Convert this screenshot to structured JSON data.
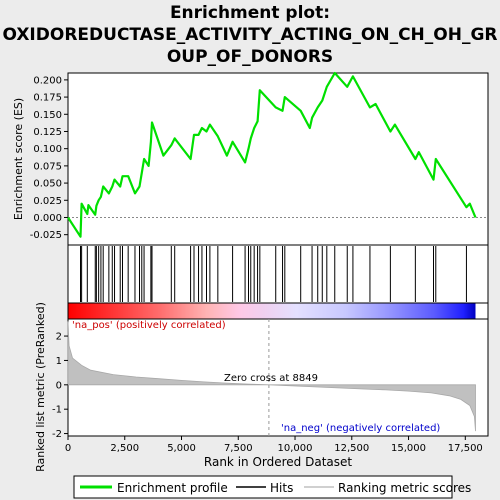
{
  "chart_data": {
    "type": "line",
    "title_lines": [
      "Enrichment plot:",
      "OXIDOREDUCTASE_ACTIVITY_ACTING_ON_CH_OH_GR",
      "OUP_OF_DONORS"
    ],
    "top_panel": {
      "ylabel": "Enrichment score (ES)",
      "ylim": [
        -0.04,
        0.21
      ],
      "yticks": [
        "0.200",
        "0.175",
        "0.150",
        "0.125",
        "0.100",
        "0.075",
        "0.050",
        "0.025",
        "0.000",
        "-0.025"
      ],
      "ytick_values": [
        0.2,
        0.175,
        0.15,
        0.125,
        0.1,
        0.075,
        0.05,
        0.025,
        0.0,
        -0.025
      ],
      "series_name": "Enrichment profile",
      "color": "#00e000",
      "points": [
        [
          0,
          0.0
        ],
        [
          550,
          -0.028
        ],
        [
          600,
          0.02
        ],
        [
          850,
          0.005
        ],
        [
          900,
          0.018
        ],
        [
          1200,
          0.004
        ],
        [
          1250,
          0.017
        ],
        [
          1350,
          0.025
        ],
        [
          1450,
          0.03
        ],
        [
          1550,
          0.045
        ],
        [
          1800,
          0.035
        ],
        [
          1950,
          0.045
        ],
        [
          2050,
          0.055
        ],
        [
          2300,
          0.045
        ],
        [
          2400,
          0.06
        ],
        [
          2650,
          0.06
        ],
        [
          2950,
          0.035
        ],
        [
          3150,
          0.045
        ],
        [
          3250,
          0.065
        ],
        [
          3350,
          0.085
        ],
        [
          3550,
          0.075
        ],
        [
          3650,
          0.11
        ],
        [
          3700,
          0.138
        ],
        [
          4200,
          0.09
        ],
        [
          4550,
          0.105
        ],
        [
          4700,
          0.115
        ],
        [
          5400,
          0.085
        ],
        [
          5550,
          0.12
        ],
        [
          5750,
          0.12
        ],
        [
          5900,
          0.13
        ],
        [
          6100,
          0.125
        ],
        [
          6250,
          0.135
        ],
        [
          6600,
          0.118
        ],
        [
          7000,
          0.09
        ],
        [
          7250,
          0.11
        ],
        [
          7800,
          0.08
        ],
        [
          7950,
          0.1
        ],
        [
          8050,
          0.115
        ],
        [
          8200,
          0.13
        ],
        [
          8350,
          0.14
        ],
        [
          8450,
          0.185
        ],
        [
          9150,
          0.16
        ],
        [
          9450,
          0.155
        ],
        [
          9550,
          0.175
        ],
        [
          10250,
          0.155
        ],
        [
          10650,
          0.13
        ],
        [
          10750,
          0.145
        ],
        [
          11000,
          0.16
        ],
        [
          11200,
          0.17
        ],
        [
          11400,
          0.19
        ],
        [
          11750,
          0.21
        ],
        [
          12300,
          0.19
        ],
        [
          12550,
          0.205
        ],
        [
          13300,
          0.16
        ],
        [
          13550,
          0.165
        ],
        [
          14200,
          0.125
        ],
        [
          14400,
          0.135
        ],
        [
          15300,
          0.085
        ],
        [
          15450,
          0.095
        ],
        [
          16100,
          0.055
        ],
        [
          16200,
          0.085
        ],
        [
          17550,
          0.015
        ],
        [
          17700,
          0.02
        ],
        [
          17950,
          0.0
        ]
      ]
    },
    "hits_rug": {
      "series_name": "Hits",
      "x": [
        550,
        600,
        850,
        1200,
        1250,
        1350,
        1450,
        1550,
        1800,
        1950,
        2050,
        2300,
        2400,
        2650,
        2950,
        3150,
        3250,
        3350,
        3650,
        3700,
        4550,
        4700,
        5400,
        5550,
        5750,
        5900,
        6100,
        6250,
        6600,
        7250,
        7800,
        7950,
        8050,
        8200,
        8350,
        8450,
        9150,
        9450,
        9550,
        10250,
        10750,
        11000,
        11200,
        11400,
        11750,
        12300,
        12550,
        13300,
        14200,
        15300,
        16100,
        16200,
        17550
      ]
    },
    "bottom_panel": {
      "ylabel": "Ranked list metric (PreRanked)",
      "ylim": [
        -2.1,
        2.7
      ],
      "yticks": [
        "2",
        "1",
        "0",
        "-1",
        "-2"
      ],
      "ytick_values": [
        2,
        1,
        0,
        -1,
        -2
      ],
      "series_name": "Ranking metric scores",
      "curve": [
        [
          0,
          2.6
        ],
        [
          50,
          1.6
        ],
        [
          200,
          1.1
        ],
        [
          600,
          0.8
        ],
        [
          1000,
          0.6
        ],
        [
          2000,
          0.42
        ],
        [
          3000,
          0.32
        ],
        [
          4000,
          0.25
        ],
        [
          5000,
          0.18
        ],
        [
          6000,
          0.12
        ],
        [
          7000,
          0.07
        ],
        [
          8000,
          0.03
        ],
        [
          8849,
          0.0
        ],
        [
          10000,
          -0.05
        ],
        [
          11000,
          -0.09
        ],
        [
          12000,
          -0.13
        ],
        [
          13000,
          -0.17
        ],
        [
          14000,
          -0.21
        ],
        [
          15000,
          -0.26
        ],
        [
          16000,
          -0.33
        ],
        [
          16800,
          -0.45
        ],
        [
          17300,
          -0.6
        ],
        [
          17700,
          -0.85
        ],
        [
          17900,
          -1.3
        ],
        [
          17950,
          -1.9
        ]
      ],
      "zero_cross_x": 8849,
      "label_pos": "'na_pos' (positively correlated)",
      "label_neg": "'na_neg' (negatively correlated)",
      "zero_cross_label": "Zero cross at 8849"
    },
    "x_axis": {
      "label": "Rank in Ordered Dataset",
      "xlim": [
        0,
        18500
      ],
      "ticks": [
        "0",
        "2,500",
        "5,000",
        "7,500",
        "10,000",
        "12,500",
        "15,000",
        "17,500"
      ],
      "tick_values": [
        0,
        2500,
        5000,
        7500,
        10000,
        12500,
        15000,
        17500
      ]
    },
    "legend": {
      "position": "bottom",
      "entries": [
        "Enrichment profile",
        "Hits",
        "Ranking metric scores"
      ]
    },
    "colors": {
      "profile": "#00e000",
      "hits": "#000000",
      "metric": "#c0c0c0",
      "pos": "#ff0000",
      "neg": "#0000ff"
    }
  }
}
